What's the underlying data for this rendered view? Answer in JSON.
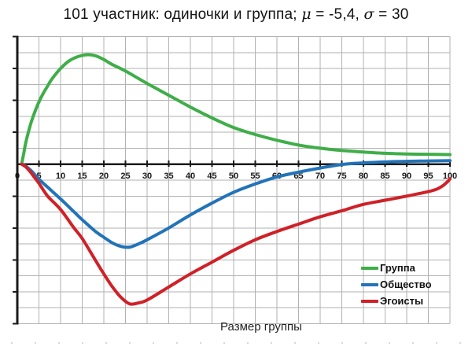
{
  "title": {
    "prefix": "101 участник: одиночки и группа; ",
    "mu": "μ",
    "mu_value": " = -5,4, ",
    "sigma": "σ",
    "sigma_value": " = 30"
  },
  "chart_data": {
    "type": "line",
    "title": "101 участник: одиночки и группа; μ = -5,4, σ = 30",
    "xlabel": "Размер группы",
    "ylabel": "",
    "xlim": [
      0,
      100
    ],
    "ylim": [
      -5,
      4
    ],
    "x_ticks": [
      0,
      5,
      10,
      15,
      20,
      25,
      30,
      35,
      40,
      45,
      50,
      55,
      60,
      65,
      70,
      75,
      80,
      85,
      90,
      95,
      100
    ],
    "y_tick_step": 1,
    "y_minor_step": 0.5,
    "y_axis_labeled": false,
    "grid": true,
    "legend_position": "inside-right-bottom",
    "colors": {
      "grid": "#b2b2b2",
      "axis": "#1a1a1a"
    },
    "series": [
      {
        "id": "gruppa",
        "name": "Группа",
        "color": "#3fae49",
        "points": [
          [
            1,
            0
          ],
          [
            1.5,
            0.35
          ],
          [
            2,
            0.7
          ],
          [
            3,
            1.22
          ],
          [
            4,
            1.62
          ],
          [
            5,
            1.95
          ],
          [
            6,
            2.22
          ],
          [
            7,
            2.45
          ],
          [
            8,
            2.67
          ],
          [
            10,
            3.0
          ],
          [
            12,
            3.24
          ],
          [
            14,
            3.37
          ],
          [
            16,
            3.43
          ],
          [
            18,
            3.4
          ],
          [
            20,
            3.28
          ],
          [
            22,
            3.12
          ],
          [
            25,
            2.92
          ],
          [
            30,
            2.53
          ],
          [
            35,
            2.16
          ],
          [
            40,
            1.79
          ],
          [
            45,
            1.45
          ],
          [
            50,
            1.15
          ],
          [
            55,
            0.93
          ],
          [
            60,
            0.75
          ],
          [
            65,
            0.6
          ],
          [
            70,
            0.5
          ],
          [
            75,
            0.43
          ],
          [
            80,
            0.38
          ],
          [
            85,
            0.34
          ],
          [
            90,
            0.32
          ],
          [
            95,
            0.31
          ],
          [
            100,
            0.3
          ]
        ]
      },
      {
        "id": "obshchestvo",
        "name": "Общество",
        "color": "#2273b8",
        "points": [
          [
            1,
            0
          ],
          [
            2,
            -0.07
          ],
          [
            3,
            -0.18
          ],
          [
            4,
            -0.32
          ],
          [
            5,
            -0.47
          ],
          [
            7,
            -0.72
          ],
          [
            10,
            -1.09
          ],
          [
            13,
            -1.48
          ],
          [
            15,
            -1.74
          ],
          [
            18,
            -2.1
          ],
          [
            20,
            -2.29
          ],
          [
            22,
            -2.47
          ],
          [
            24,
            -2.58
          ],
          [
            26,
            -2.6
          ],
          [
            28,
            -2.5
          ],
          [
            30,
            -2.37
          ],
          [
            35,
            -2.0
          ],
          [
            40,
            -1.59
          ],
          [
            45,
            -1.22
          ],
          [
            50,
            -0.88
          ],
          [
            55,
            -0.62
          ],
          [
            60,
            -0.4
          ],
          [
            65,
            -0.25
          ],
          [
            70,
            -0.12
          ],
          [
            75,
            -0.01
          ],
          [
            80,
            0.04
          ],
          [
            85,
            0.07
          ],
          [
            90,
            0.09
          ],
          [
            95,
            0.1
          ],
          [
            100,
            0.11
          ]
        ]
      },
      {
        "id": "egoisty",
        "name": "Эгоисты",
        "color": "#cf2127",
        "points": [
          [
            1,
            0
          ],
          [
            2,
            -0.09
          ],
          [
            3,
            -0.24
          ],
          [
            4,
            -0.42
          ],
          [
            5,
            -0.6
          ],
          [
            7,
            -1.0
          ],
          [
            10,
            -1.42
          ],
          [
            13,
            -1.98
          ],
          [
            15,
            -2.33
          ],
          [
            18,
            -3.0
          ],
          [
            20,
            -3.44
          ],
          [
            22,
            -3.85
          ],
          [
            24,
            -4.18
          ],
          [
            26,
            -4.38
          ],
          [
            28,
            -4.35
          ],
          [
            30,
            -4.26
          ],
          [
            35,
            -3.85
          ],
          [
            40,
            -3.44
          ],
          [
            45,
            -3.07
          ],
          [
            50,
            -2.7
          ],
          [
            55,
            -2.37
          ],
          [
            60,
            -2.11
          ],
          [
            65,
            -1.88
          ],
          [
            70,
            -1.65
          ],
          [
            75,
            -1.46
          ],
          [
            80,
            -1.26
          ],
          [
            85,
            -1.13
          ],
          [
            90,
            -1.0
          ],
          [
            95,
            -0.86
          ],
          [
            97,
            -0.78
          ],
          [
            98.5,
            -0.66
          ],
          [
            99.5,
            -0.54
          ],
          [
            100,
            -0.46
          ]
        ]
      }
    ]
  }
}
